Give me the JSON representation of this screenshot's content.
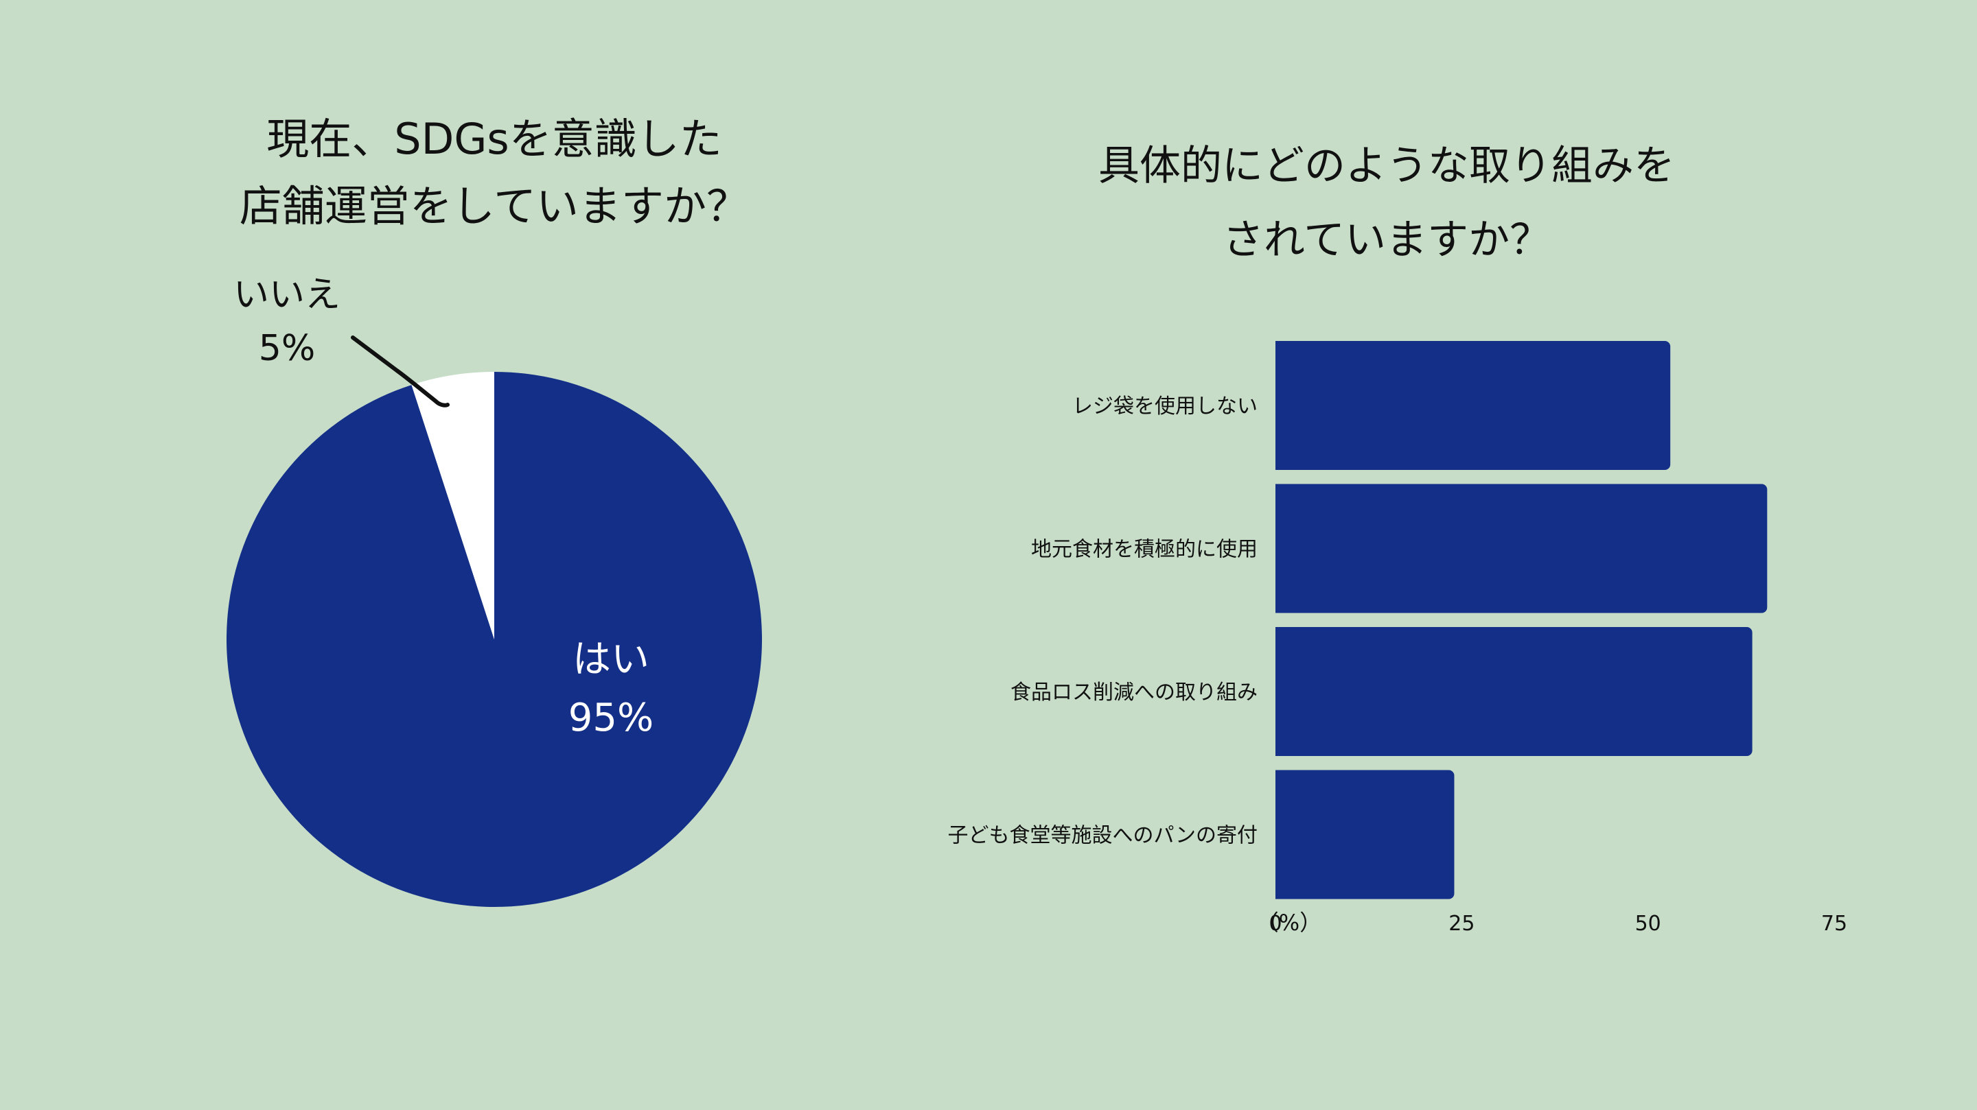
{
  "colors": {
    "background": "#c7ddc8",
    "bar": "#132f87",
    "pie_no": "#ffffff",
    "text": "#111111"
  },
  "chart_data": [
    {
      "type": "pie",
      "title_lines": [
        "現在、SDGsを意識した",
        "店舗運営をしていますか？"
      ],
      "slices": [
        {
          "label": "はい",
          "value": 95,
          "value_text": "95%",
          "color": "#132f87"
        },
        {
          "label": "いいえ",
          "value": 5,
          "value_text": "5%",
          "color": "#ffffff"
        }
      ]
    },
    {
      "type": "bar",
      "orientation": "horizontal",
      "title_lines": [
        "具体的にどのような取り組みを",
        "されていますか？"
      ],
      "categories": [
        "レジ袋を使用しない",
        "地元食材を積極的に使用",
        "食品ロス削減への取り組み",
        "子ども食堂等施設へのパンの寄付"
      ],
      "values": [
        53,
        66,
        64,
        24
      ],
      "xlim": [
        0,
        75
      ],
      "ticks": [
        0,
        25,
        50,
        75
      ],
      "tick_labels": [
        "0",
        "25",
        "50",
        "75"
      ],
      "unit_label": "（%）",
      "grid": false
    }
  ]
}
